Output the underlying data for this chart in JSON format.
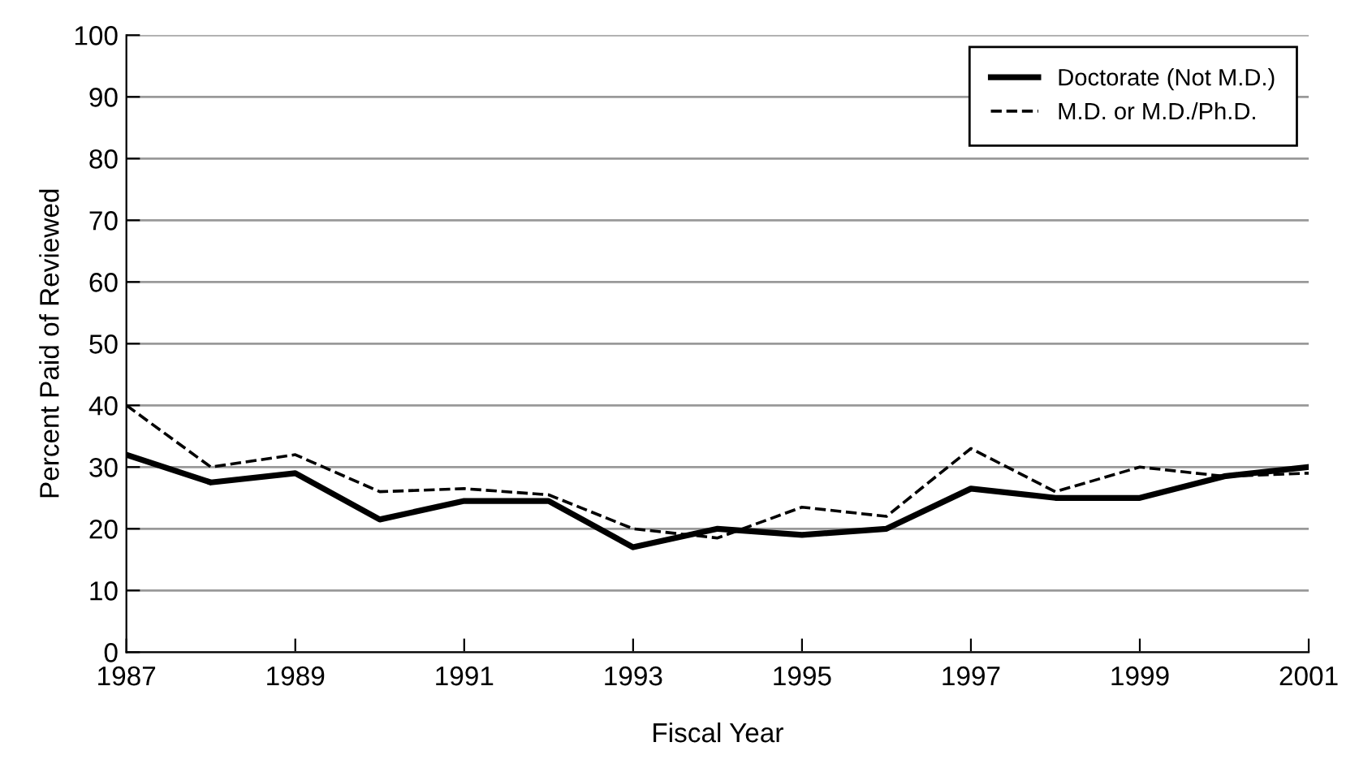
{
  "chart_data": {
    "type": "line",
    "xlabel": "Fiscal Year",
    "ylabel": "Percent Paid of Reviewed",
    "x": [
      1987,
      1988,
      1989,
      1990,
      1991,
      1992,
      1993,
      1994,
      1995,
      1996,
      1997,
      1998,
      1999,
      2000,
      2001
    ],
    "series": [
      {
        "name": "Doctorate (Not M.D.)",
        "color": "#000000",
        "line_style": "solid",
        "values": [
          32,
          27.5,
          29,
          21.5,
          24.5,
          24.5,
          17,
          20,
          19,
          20,
          26.5,
          25,
          25,
          28.5,
          30
        ]
      },
      {
        "name": "M.D. or M.D./Ph.D.",
        "color": "#000000",
        "line_style": "dashed",
        "values": [
          40,
          30,
          32,
          26,
          26.5,
          25.5,
          20,
          18.5,
          23.5,
          22,
          33,
          26,
          30,
          28.5,
          29
        ]
      }
    ],
    "xlim": [
      1987,
      2001
    ],
    "xticks": [
      1987,
      1989,
      1991,
      1993,
      1995,
      1997,
      1999,
      2001
    ],
    "ylim": [
      0,
      100
    ],
    "yticks": [
      0,
      10,
      20,
      30,
      40,
      50,
      60,
      70,
      80,
      90,
      100
    ],
    "grid": "y",
    "legend": "top right",
    "marker": "none"
  }
}
